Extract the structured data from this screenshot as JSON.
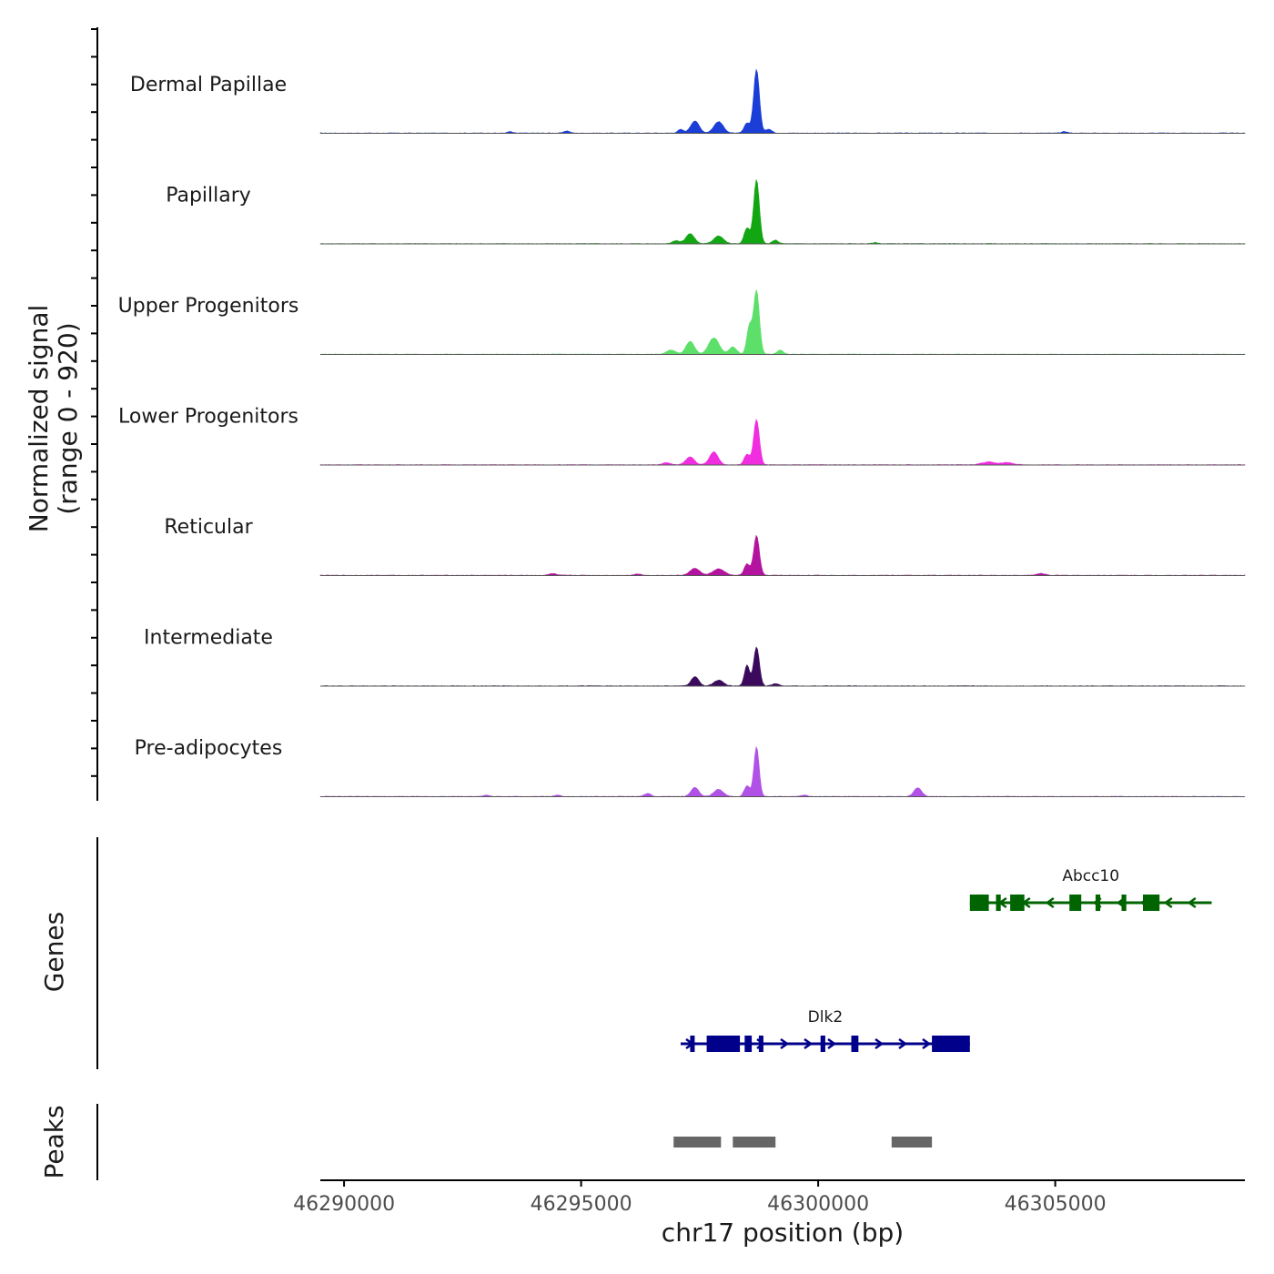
{
  "chart_data": {
    "type": "area",
    "title": "",
    "ylabel": "Normalized signal",
    "ylabel_range": "(range 0 - 920)",
    "xlabel": "chr17 position (bp)",
    "xlim": [
      46289500,
      46309000
    ],
    "x_ticks": [
      46290000,
      46295000,
      46300000,
      46305000
    ],
    "x_tick_labels": [
      "46290000",
      "46295000",
      "46300000",
      "46305000"
    ],
    "signal_range": [
      0,
      920
    ],
    "tracks": [
      {
        "name": "Dermal Papillae",
        "color": "#1a3ed6",
        "peaks": [
          [
            46298700,
            900,
            60
          ],
          [
            46297400,
            170,
            90
          ],
          [
            46297900,
            160,
            100
          ],
          [
            46298500,
            140,
            60
          ],
          [
            46297100,
            50,
            60
          ],
          [
            46298950,
            55,
            70
          ],
          [
            46294700,
            30,
            60
          ],
          [
            46293500,
            20,
            50
          ],
          [
            46305200,
            20,
            60
          ]
        ]
      },
      {
        "name": "Papillary",
        "color": "#12a612",
        "peaks": [
          [
            46298700,
            900,
            60
          ],
          [
            46297300,
            140,
            90
          ],
          [
            46297900,
            110,
            100
          ],
          [
            46298500,
            220,
            60
          ],
          [
            46297000,
            40,
            80
          ],
          [
            46299100,
            50,
            60
          ],
          [
            46301200,
            15,
            60
          ]
        ]
      },
      {
        "name": "Upper Progenitors",
        "color": "#5de06a",
        "peaks": [
          [
            46298700,
            900,
            60
          ],
          [
            46297300,
            180,
            90
          ],
          [
            46297800,
            230,
            110
          ],
          [
            46298550,
            390,
            55
          ],
          [
            46296900,
            60,
            90
          ],
          [
            46298200,
            100,
            80
          ],
          [
            46299200,
            60,
            60
          ]
        ]
      },
      {
        "name": "Lower Progenitors",
        "color": "#f02ee0",
        "peaks": [
          [
            46298700,
            640,
            60
          ],
          [
            46297300,
            110,
            90
          ],
          [
            46297800,
            180,
            90
          ],
          [
            46298500,
            150,
            60
          ],
          [
            46296800,
            30,
            80
          ],
          [
            46303600,
            40,
            150
          ],
          [
            46304000,
            30,
            120
          ]
        ]
      },
      {
        "name": "Reticular",
        "color": "#b3139e",
        "peaks": [
          [
            46298700,
            560,
            60
          ],
          [
            46297400,
            100,
            100
          ],
          [
            46297900,
            90,
            120
          ],
          [
            46298500,
            160,
            60
          ],
          [
            46294400,
            25,
            70
          ],
          [
            46304700,
            25,
            90
          ],
          [
            46296200,
            20,
            70
          ]
        ]
      },
      {
        "name": "Intermediate",
        "color": "#3b0a5c",
        "peaks": [
          [
            46298700,
            550,
            60
          ],
          [
            46297400,
            130,
            80
          ],
          [
            46297900,
            80,
            100
          ],
          [
            46298500,
            290,
            55
          ],
          [
            46299100,
            30,
            70
          ]
        ]
      },
      {
        "name": "Pre-adipocytes",
        "color": "#b052e6",
        "peaks": [
          [
            46298700,
            700,
            55
          ],
          [
            46297400,
            130,
            80
          ],
          [
            46297900,
            100,
            100
          ],
          [
            46298500,
            150,
            60
          ],
          [
            46302100,
            120,
            80
          ],
          [
            46296400,
            40,
            70
          ],
          [
            46293000,
            20,
            60
          ],
          [
            46294500,
            20,
            60
          ],
          [
            46299700,
            20,
            60
          ]
        ]
      }
    ],
    "genes_label": "Genes",
    "genes": [
      {
        "name": "Abcc10",
        "color": "#006400",
        "strand": "-",
        "start": 46303200,
        "end": 46308300,
        "exons": [
          [
            46303200,
            46303600
          ],
          [
            46303750,
            46303850
          ],
          [
            46304050,
            46304350
          ],
          [
            46305300,
            46305550
          ],
          [
            46305850,
            46305950
          ],
          [
            46306400,
            46306500
          ],
          [
            46306850,
            46307200
          ]
        ]
      },
      {
        "name": "Dlk2",
        "color": "#00008b",
        "strand": "+",
        "start": 46297100,
        "end": 46303200,
        "exons": [
          [
            46297300,
            46297350
          ],
          [
            46297650,
            46298350
          ],
          [
            46298450,
            46298600
          ],
          [
            46298750,
            46298800
          ],
          [
            46300050,
            46300150
          ],
          [
            46300700,
            46300850
          ],
          [
            46302400,
            46303200
          ]
        ]
      }
    ],
    "peaks_label": "Peaks",
    "peaks": [
      [
        46296950,
        46297950
      ],
      [
        46298200,
        46299100
      ],
      [
        46301550,
        46302400
      ]
    ]
  }
}
